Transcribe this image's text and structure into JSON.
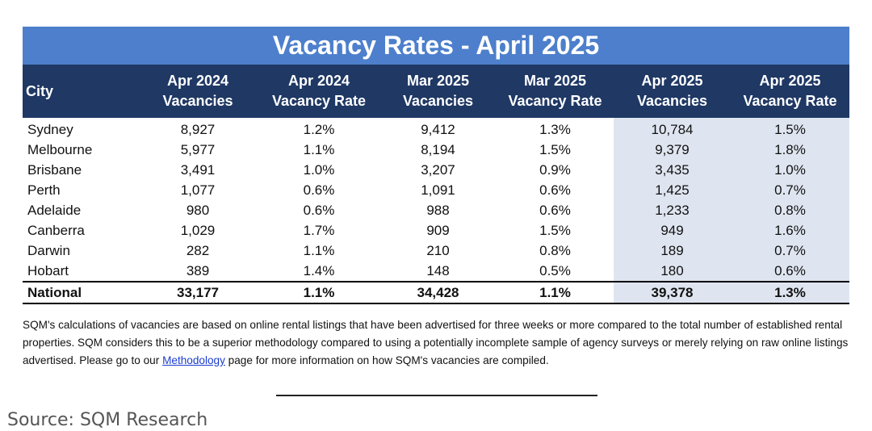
{
  "title": "Vacancy Rates - April 2025",
  "table": {
    "header": [
      "City",
      "Apr 2024\nVacancies",
      "Apr 2024\nVacancy Rate",
      "Mar 2025\nVacancies",
      "Mar 2025\nVacancy Rate",
      "Apr 2025\nVacancies",
      "Apr 2025\nVacancy Rate"
    ],
    "rows": [
      [
        "Sydney",
        "8,927",
        "1.2%",
        "9,412",
        "1.3%",
        "10,784",
        "1.5%"
      ],
      [
        "Melbourne",
        "5,977",
        "1.1%",
        "8,194",
        "1.5%",
        "9,379",
        "1.8%"
      ],
      [
        "Brisbane",
        "3,491",
        "1.0%",
        "3,207",
        "0.9%",
        "3,435",
        "1.0%"
      ],
      [
        "Perth",
        "1,077",
        "0.6%",
        "1,091",
        "0.6%",
        "1,425",
        "0.7%"
      ],
      [
        "Adelaide",
        "980",
        "0.6%",
        "988",
        "0.6%",
        "1,233",
        "0.8%"
      ],
      [
        "Canberra",
        "1,029",
        "1.7%",
        "909",
        "1.5%",
        "949",
        "1.6%"
      ],
      [
        "Darwin",
        "282",
        "1.1%",
        "210",
        "0.8%",
        "189",
        "0.7%"
      ],
      [
        "Hobart",
        "389",
        "1.4%",
        "148",
        "0.5%",
        "180",
        "0.6%"
      ]
    ],
    "total": [
      "National",
      "33,177",
      "1.1%",
      "34,428",
      "1.1%",
      "39,378",
      "1.3%"
    ]
  },
  "note": {
    "before": "SQM's calculations of vacancies are based on online rental listings that have been advertised for three weeks or more compared to the total number of established rental properties. SQM considers this to be a superior methodology compared to using a potentially incomplete sample of agency surveys or merely relying on raw online listings advertised. Please go to our ",
    "link": "Methodology",
    "after": " page for more information on how SQM's vacancies are compiled."
  },
  "source": "Source: SQM Research"
}
